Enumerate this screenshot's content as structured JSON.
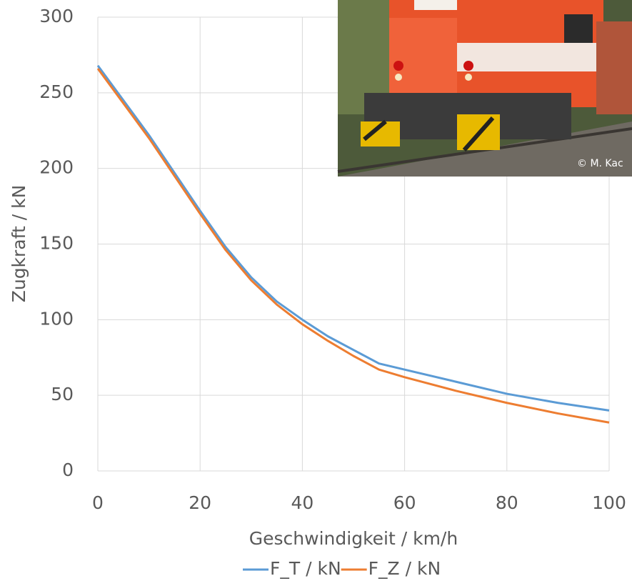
{
  "chart_data": {
    "type": "line",
    "x": [
      0,
      5,
      10,
      15,
      20,
      25,
      30,
      35,
      40,
      45,
      50,
      55,
      60,
      70,
      80,
      90,
      100
    ],
    "series": [
      {
        "name": "F_T / kN",
        "color": "#5b9bd5",
        "values": [
          268,
          245,
          222,
          197,
          172,
          148,
          128,
          112,
          100,
          89,
          80,
          71,
          67,
          59,
          51,
          45,
          40
        ]
      },
      {
        "name": "F_Z / kN",
        "color": "#ed7d31",
        "values": [
          266,
          243,
          220,
          195,
          170,
          146,
          126,
          110,
          97,
          86,
          76,
          67,
          62,
          53,
          45,
          38,
          32
        ]
      }
    ],
    "xlabel": "Geschwindigkeit / km/h",
    "ylabel": "Zugkraft / kN",
    "xlim": [
      0,
      100
    ],
    "xticks": [
      0,
      20,
      40,
      60,
      80,
      100
    ],
    "ylim": [
      0,
      300
    ],
    "yticks": [
      0,
      50,
      100,
      150,
      200,
      250,
      300
    ],
    "grid": true,
    "legend": "bottom",
    "annotation": "© M. Kac"
  }
}
